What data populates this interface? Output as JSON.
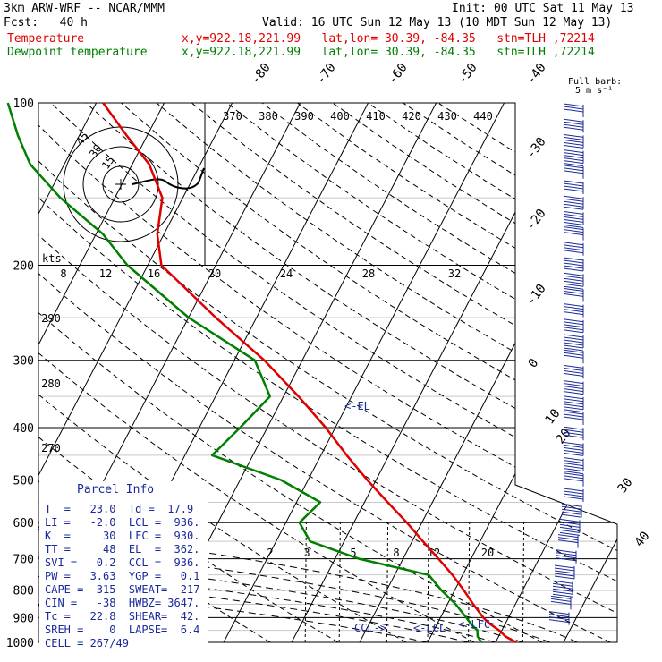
{
  "header": {
    "model": "3km ARW-WRF -- NCAR/MMM",
    "init": "Init: 00 UTC Sat 11 May 13",
    "fcst": "Fcst:   40 h",
    "valid": "Valid: 16 UTC Sun 12 May 13 (10 MDT Sun 12 May 13)",
    "temp_label": "Temperature",
    "dew_label": "Dewpoint temperature",
    "temp_loc": "x,y=922.18,221.99   lat,lon= 30.39, -84.35   stn=TLH ,72214",
    "dew_loc": "x,y=922.18,221.99   lat,lon= 30.39, -84.35   stn=TLH ,72214"
  },
  "colors": {
    "temperature": "#e00000",
    "dewpoint": "#008000",
    "parcel_text": "#1a2a9a",
    "barbs": "#1a2a9a"
  },
  "hodograph": {
    "unit": "kts",
    "ring_labels": [
      "15",
      "30",
      "45"
    ],
    "scale_labels": [
      "8",
      "12",
      "16",
      "20",
      "24",
      "28",
      "32"
    ]
  },
  "wind_barb_legend": {
    "line1": "Full barb:",
    "line2": "5 m s⁻¹"
  },
  "annotations": {
    "el": "<-EL",
    "ccl": "CCL->",
    "lcl": "<-LCL",
    "lfc": "<-LFC"
  },
  "parcel_info": {
    "title": "Parcel Info",
    "rows": [
      "T  =   23.0  Td =  17.9",
      "LI =   -2.0  LCL =  936.",
      "K  =     30  LFC =  930.",
      "TT =     48  EL  =  362.",
      "SVI =   0.2  CCL =  936.",
      "PW =   3.63  YGP =   0.1",
      "CAPE =  315  SWEAT=  217",
      "CIN =   -38  HWBZ= 3647.",
      "Tc =   22.8  SHEAR=  42.",
      "SREH =    0  LAPSE=  6.4",
      "CELL = 267/49"
    ]
  },
  "chart_data": {
    "type": "line",
    "xlabel": "",
    "ylabel": "",
    "y_scale": "log",
    "pressure_levels": [
      "100",
      "200",
      "300",
      "400",
      "500",
      "600",
      "700",
      "800",
      "900",
      "1000"
    ],
    "skewed_isotherm_labels": [
      "-80",
      "-70",
      "-60",
      "-50",
      "-40",
      "-30",
      "-20",
      "-10",
      "0",
      "10",
      "20",
      "30",
      "40"
    ],
    "theta_labels": [
      "370",
      "380",
      "390",
      "400",
      "410",
      "420",
      "430",
      "440"
    ],
    "theta_labels_left": [
      "290",
      "280",
      "270"
    ],
    "mixing_ratio_labels": [
      "2",
      "3",
      "5",
      "8",
      "12",
      "20"
    ],
    "series": [
      {
        "name": "Temperature",
        "points": [
          [
            1000,
            23.0
          ],
          [
            975,
            21.0
          ],
          [
            950,
            19.6
          ],
          [
            925,
            17.8
          ],
          [
            900,
            16.3
          ],
          [
            850,
            13.8
          ],
          [
            800,
            11.3
          ],
          [
            750,
            8.5
          ],
          [
            700,
            5.2
          ],
          [
            650,
            1.6
          ],
          [
            600,
            -2.2
          ],
          [
            550,
            -6.6
          ],
          [
            500,
            -11.3
          ],
          [
            450,
            -16.2
          ],
          [
            400,
            -21.4
          ],
          [
            350,
            -27.8
          ],
          [
            300,
            -35.6
          ],
          [
            250,
            -46.0
          ],
          [
            200,
            -58.0
          ],
          [
            175,
            -61.0
          ],
          [
            150,
            -63.0
          ],
          [
            130,
            -67.5
          ],
          [
            115,
            -73.0
          ],
          [
            100,
            -79.0
          ]
        ]
      },
      {
        "name": "Dewpoint temperature",
        "points": [
          [
            1000,
            17.9
          ],
          [
            975,
            16.9
          ],
          [
            950,
            16.4
          ],
          [
            925,
            15.0
          ],
          [
            900,
            13.8
          ],
          [
            850,
            11.2
          ],
          [
            800,
            8.0
          ],
          [
            750,
            5.0
          ],
          [
            700,
            -6.5
          ],
          [
            650,
            -15.0
          ],
          [
            600,
            -18.0
          ],
          [
            550,
            -16.5
          ],
          [
            500,
            -24.0
          ],
          [
            450,
            -36.0
          ],
          [
            400,
            -34.0
          ],
          [
            350,
            -32.0
          ],
          [
            300,
            -37.0
          ],
          [
            250,
            -50.0
          ],
          [
            200,
            -63.0
          ],
          [
            175,
            -69.0
          ],
          [
            150,
            -78.0
          ],
          [
            130,
            -85.0
          ],
          [
            115,
            -89.0
          ],
          [
            100,
            -93.0
          ]
        ]
      }
    ]
  }
}
